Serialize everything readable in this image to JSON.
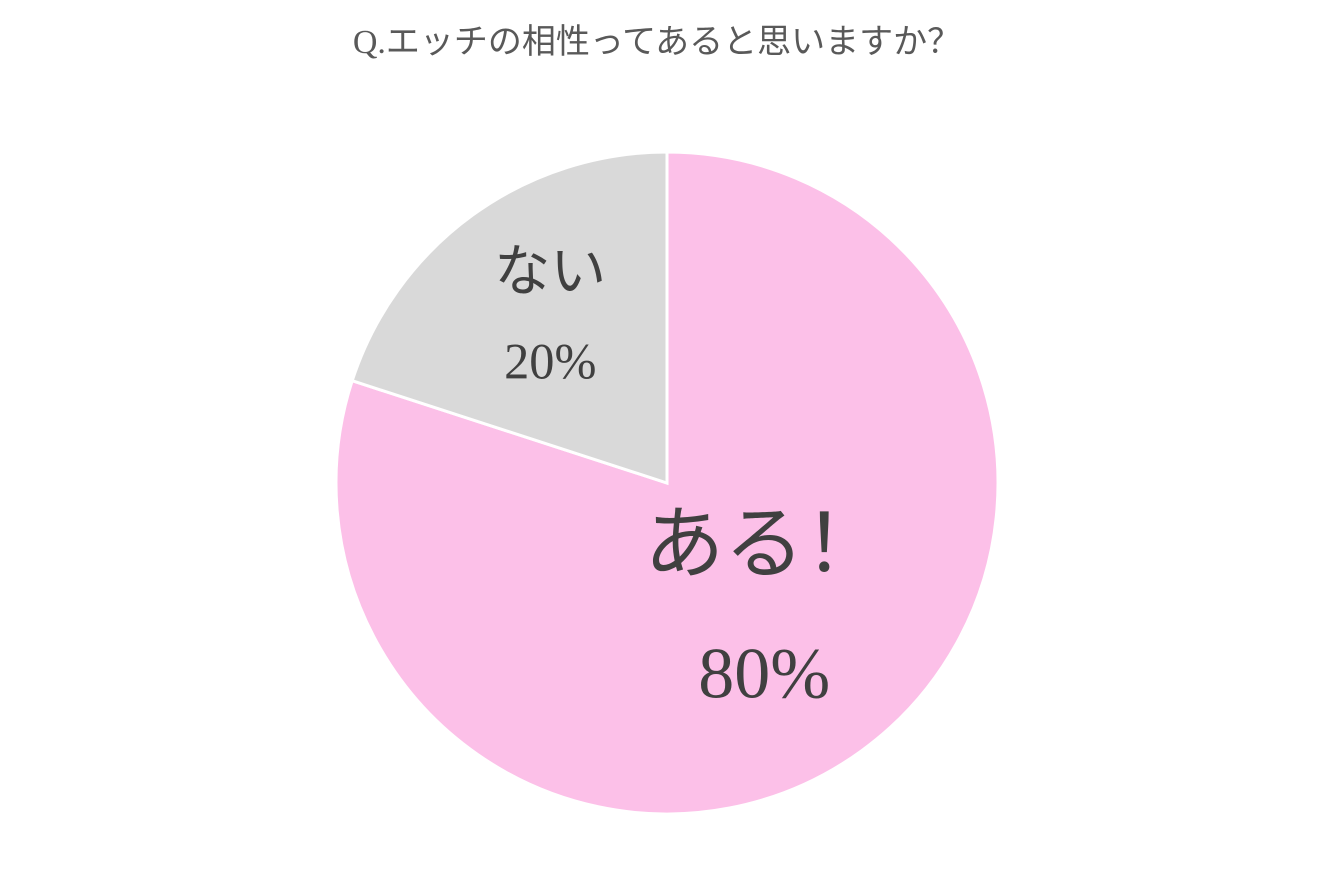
{
  "chart_data": {
    "type": "pie",
    "title": "Q.エッチの相性ってあると思いますか？",
    "categories": [
      "ある！",
      "ない"
    ],
    "values": [
      80,
      20
    ],
    "value_labels": [
      "80%",
      "20%"
    ],
    "colors": [
      "#fcc0e8",
      "#d9d9d9"
    ]
  }
}
